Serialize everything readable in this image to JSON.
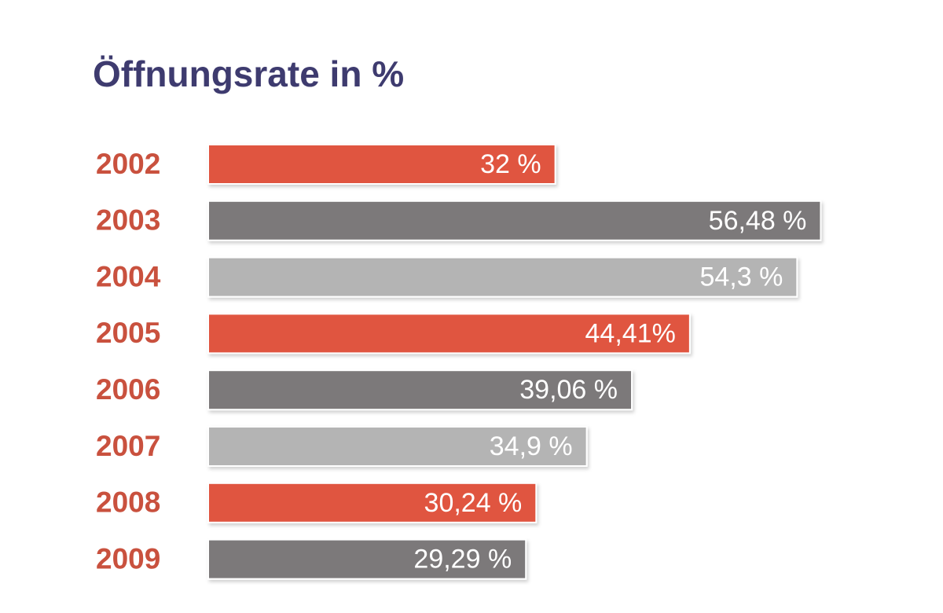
{
  "chart_data": {
    "type": "bar",
    "orientation": "horizontal",
    "title": "Öffnungsrate in %",
    "categories": [
      "2002",
      "2003",
      "2004",
      "2005",
      "2006",
      "2007",
      "2008",
      "2009"
    ],
    "values": [
      32,
      56.48,
      54.3,
      44.41,
      39.06,
      34.9,
      30.24,
      29.29
    ],
    "value_labels": [
      "32 %",
      "56,48 %",
      "54,3 %",
      "44,41%",
      "39,06 %",
      "34,9 %",
      "30,24 %",
      "29,29 %"
    ],
    "colors": [
      "#e05441",
      "#7b797a",
      "#b4b4b4",
      "#e05441",
      "#7b797a",
      "#b4b4b4",
      "#e05441",
      "#7b797a"
    ]
  }
}
